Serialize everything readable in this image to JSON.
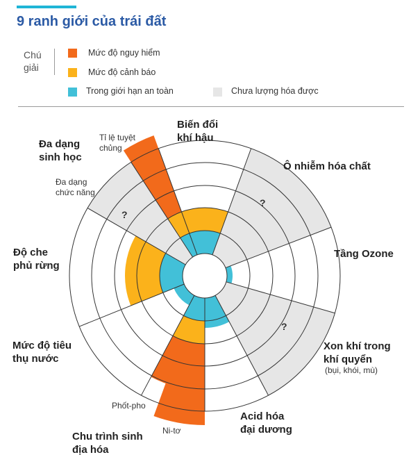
{
  "title": "9 ranh giới của trái đất",
  "legend": {
    "label": "Chú giải",
    "items": [
      {
        "key": "danger",
        "label": "Mức độ nguy hiểm",
        "color": "#f26a1b"
      },
      {
        "key": "warning",
        "label": "Mức độ cảnh báo",
        "color": "#fbb21b"
      },
      {
        "key": "safe",
        "label": "Trong giới hạn an toàn",
        "color": "#42c0d8"
      },
      {
        "key": "unquantified",
        "label": "Chưa lượng hóa được",
        "color": "#e6e6e6"
      }
    ]
  },
  "boundaries": {
    "climate": {
      "line1": "Biến đổi",
      "line2": "khí hậu"
    },
    "chemical": {
      "line1": "Ô nhiễm hóa chất"
    },
    "ozone": {
      "line1": "Tầng Ozone"
    },
    "aerosol": {
      "line1": "Xon khí  trong",
      "line2": "khí quyển",
      "note": "(bụi, khói, mù)"
    },
    "ocean": {
      "line1": "Acid hóa",
      "line2": "đại dương"
    },
    "biogeo": {
      "line1": "Chu trình sinh",
      "line2": "địa hóa",
      "sub_p": "Phốt-pho",
      "sub_n": "Ni-tơ"
    },
    "water": {
      "line1": "Mức độ tiêu",
      "line2": "thụ nước"
    },
    "land": {
      "line1": "Độ che",
      "line2": "phủ rừng"
    },
    "biodiversity": {
      "line1": "Đa dạng",
      "line2": "sinh học",
      "sub_extinction_1": "Tỉ lệ tuyệt",
      "sub_extinction_2": "chủng",
      "sub_functional_1": "Đa dạng",
      "sub_functional_2": "chức năng"
    }
  },
  "unknown_mark": "?",
  "colors": {
    "danger": "#f26a1b",
    "warning": "#fbb21b",
    "safe": "#42c0d8",
    "unquantified": "#e6e6e6",
    "grid": "#333333"
  }
}
